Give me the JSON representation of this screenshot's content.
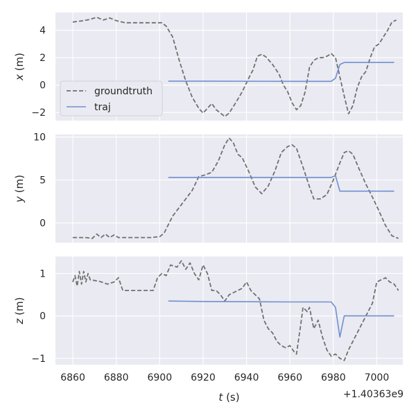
{
  "chart_data": {
    "type": "line",
    "x_offset_label": "+1.40363e9",
    "xlabel": "t (s)",
    "xlabel_var": "t",
    "xlabel_unit": " (s)",
    "xlim": [
      6852,
      7012
    ],
    "xticks": [
      6860,
      6880,
      6900,
      6920,
      6940,
      6960,
      6980,
      7000
    ],
    "legend": {
      "location": "lower-left of top panel",
      "entries": [
        "groundtruth",
        "traj"
      ]
    },
    "colors": {
      "groundtruth": "#707070",
      "traj": "#6f8fcf",
      "background": "#eaeaf2",
      "grid": "#ffffff"
    },
    "panels": [
      {
        "ylabel": "x (m)",
        "ylabel_var": "x",
        "ylabel_unit": " (m)",
        "ylim": [
          -2.6,
          5.3
        ],
        "yticks": [
          -2,
          0,
          2,
          4
        ],
        "series": [
          {
            "name": "groundtruth",
            "style": "dashed",
            "points": [
              [
                6860,
                4.6
              ],
              [
                6865,
                4.7
              ],
              [
                6868,
                4.8
              ],
              [
                6871,
                4.95
              ],
              [
                6874,
                4.75
              ],
              [
                6877,
                4.9
              ],
              [
                6880,
                4.7
              ],
              [
                6884,
                4.55
              ],
              [
                6890,
                4.55
              ],
              [
                6896,
                4.55
              ],
              [
                6901,
                4.55
              ],
              [
                6903,
                4.3
              ],
              [
                6906,
                3.5
              ],
              [
                6909,
                1.8
              ],
              [
                6912,
                0.3
              ],
              [
                6915,
                -0.9
              ],
              [
                6918,
                -1.7
              ],
              [
                6920,
                -2.05
              ],
              [
                6922,
                -1.7
              ],
              [
                6924,
                -1.35
              ],
              [
                6926,
                -1.8
              ],
              [
                6928,
                -2.05
              ],
              [
                6930,
                -2.3
              ],
              [
                6932,
                -2.05
              ],
              [
                6935,
                -1.3
              ],
              [
                6938,
                -0.5
              ],
              [
                6941,
                0.5
              ],
              [
                6943,
                1.1
              ],
              [
                6945,
                2.1
              ],
              [
                6947,
                2.25
              ],
              [
                6949,
                2.05
              ],
              [
                6952,
                1.5
              ],
              [
                6955,
                0.8
              ],
              [
                6957,
                0.0
              ],
              [
                6959,
                -0.5
              ],
              [
                6961,
                -1.3
              ],
              [
                6963,
                -1.8
              ],
              [
                6965,
                -1.5
              ],
              [
                6967,
                -0.5
              ],
              [
                6969,
                1.3
              ],
              [
                6971,
                1.8
              ],
              [
                6973,
                2.0
              ],
              [
                6975,
                2.0
              ],
              [
                6977,
                2.1
              ],
              [
                6979,
                2.3
              ],
              [
                6981,
                2.0
              ],
              [
                6983,
                0.6
              ],
              [
                6985,
                -0.8
              ],
              [
                6987,
                -2.1
              ],
              [
                6989,
                -1.5
              ],
              [
                6991,
                -0.2
              ],
              [
                6993,
                0.6
              ],
              [
                6995,
                1.0
              ],
              [
                6997,
                2.0
              ],
              [
                6999,
                2.8
              ],
              [
                7001,
                3.0
              ],
              [
                7003,
                3.5
              ],
              [
                7005,
                4.0
              ],
              [
                7007,
                4.6
              ],
              [
                7009,
                4.75
              ]
            ]
          },
          {
            "name": "traj",
            "style": "solid",
            "points": [
              [
                6904,
                0.28
              ],
              [
                6920,
                0.28
              ],
              [
                6960,
                0.27
              ],
              [
                6979,
                0.27
              ],
              [
                6981,
                0.5
              ],
              [
                6983,
                1.5
              ],
              [
                6985,
                1.65
              ],
              [
                7008,
                1.65
              ]
            ]
          }
        ]
      },
      {
        "ylabel": "y (m)",
        "ylabel_var": "y",
        "ylabel_unit": " (m)",
        "ylim": [
          -2.3,
          10.3
        ],
        "yticks": [
          0,
          5,
          10
        ],
        "series": [
          {
            "name": "groundtruth",
            "style": "dashed",
            "points": [
              [
                6860,
                -1.7
              ],
              [
                6866,
                -1.7
              ],
              [
                6869,
                -1.8
              ],
              [
                6871,
                -1.3
              ],
              [
                6873,
                -1.7
              ],
              [
                6875,
                -1.3
              ],
              [
                6877,
                -1.7
              ],
              [
                6879,
                -1.4
              ],
              [
                6881,
                -1.7
              ],
              [
                6885,
                -1.7
              ],
              [
                6890,
                -1.7
              ],
              [
                6896,
                -1.7
              ],
              [
                6900,
                -1.6
              ],
              [
                6902,
                -1.2
              ],
              [
                6904,
                -0.2
              ],
              [
                6906,
                0.8
              ],
              [
                6909,
                1.8
              ],
              [
                6912,
                2.8
              ],
              [
                6915,
                3.8
              ],
              [
                6918,
                5.4
              ],
              [
                6921,
                5.6
              ],
              [
                6924,
                5.9
              ],
              [
                6927,
                7.2
              ],
              [
                6930,
                9.1
              ],
              [
                6932,
                9.9
              ],
              [
                6934,
                9.3
              ],
              [
                6936,
                8.0
              ],
              [
                6938,
                7.6
              ],
              [
                6941,
                6.0
              ],
              [
                6944,
                4.2
              ],
              [
                6947,
                3.4
              ],
              [
                6950,
                4.3
              ],
              [
                6953,
                6.0
              ],
              [
                6956,
                8.2
              ],
              [
                6959,
                8.9
              ],
              [
                6961,
                9.1
              ],
              [
                6963,
                8.7
              ],
              [
                6966,
                6.5
              ],
              [
                6969,
                4.2
              ],
              [
                6971,
                2.8
              ],
              [
                6974,
                2.8
              ],
              [
                6977,
                3.3
              ],
              [
                6980,
                5.0
              ],
              [
                6983,
                7.0
              ],
              [
                6985,
                8.2
              ],
              [
                6987,
                8.4
              ],
              [
                6989,
                8.0
              ],
              [
                6992,
                6.2
              ],
              [
                6995,
                4.5
              ],
              [
                6998,
                3.0
              ],
              [
                7001,
                1.4
              ],
              [
                7004,
                -0.3
              ],
              [
                7007,
                -1.5
              ],
              [
                7010,
                -1.8
              ]
            ]
          },
          {
            "name": "traj",
            "style": "solid",
            "points": [
              [
                6904,
                5.3
              ],
              [
                6960,
                5.3
              ],
              [
                6979,
                5.3
              ],
              [
                6981,
                5.5
              ],
              [
                6983,
                3.7
              ],
              [
                7008,
                3.7
              ]
            ]
          }
        ]
      },
      {
        "ylabel": "z (m)",
        "ylabel_var": "z",
        "ylabel_unit": " (m)",
        "ylim": [
          -1.15,
          1.4
        ],
        "yticks": [
          -1,
          0,
          1
        ],
        "series": [
          {
            "name": "groundtruth",
            "style": "dashed",
            "points": [
              [
                6860,
                0.8
              ],
              [
                6861,
                0.95
              ],
              [
                6862,
                0.7
              ],
              [
                6863,
                1.05
              ],
              [
                6864,
                0.75
              ],
              [
                6865,
                1.05
              ],
              [
                6866,
                0.8
              ],
              [
                6867,
                1.0
              ],
              [
                6868,
                0.85
              ],
              [
                6872,
                0.82
              ],
              [
                6876,
                0.75
              ],
              [
                6879,
                0.8
              ],
              [
                6881,
                0.9
              ],
              [
                6883,
                0.6
              ],
              [
                6890,
                0.6
              ],
              [
                6897,
                0.6
              ],
              [
                6899,
                0.9
              ],
              [
                6901,
                1.0
              ],
              [
                6903,
                0.95
              ],
              [
                6905,
                1.2
              ],
              [
                6908,
                1.15
              ],
              [
                6910,
                1.3
              ],
              [
                6912,
                1.1
              ],
              [
                6914,
                1.25
              ],
              [
                6916,
                1.0
              ],
              [
                6918,
                0.85
              ],
              [
                6920,
                1.2
              ],
              [
                6922,
                1.0
              ],
              [
                6924,
                0.6
              ],
              [
                6926,
                0.6
              ],
              [
                6928,
                0.5
              ],
              [
                6930,
                0.35
              ],
              [
                6932,
                0.5
              ],
              [
                6934,
                0.55
              ],
              [
                6936,
                0.6
              ],
              [
                6938,
                0.65
              ],
              [
                6940,
                0.8
              ],
              [
                6942,
                0.6
              ],
              [
                6944,
                0.5
              ],
              [
                6946,
                0.4
              ],
              [
                6948,
                -0.1
              ],
              [
                6950,
                -0.3
              ],
              [
                6952,
                -0.4
              ],
              [
                6954,
                -0.6
              ],
              [
                6956,
                -0.7
              ],
              [
                6958,
                -0.75
              ],
              [
                6960,
                -0.7
              ],
              [
                6962,
                -0.85
              ],
              [
                6963,
                -0.9
              ],
              [
                6965,
                -0.2
              ],
              [
                6966,
                0.2
              ],
              [
                6968,
                0.1
              ],
              [
                6969,
                0.2
              ],
              [
                6971,
                -0.3
              ],
              [
                6973,
                -0.1
              ],
              [
                6975,
                -0.5
              ],
              [
                6977,
                -0.8
              ],
              [
                6979,
                -0.95
              ],
              [
                6981,
                -0.9
              ],
              [
                6983,
                -1.0
              ],
              [
                6985,
                -1.05
              ],
              [
                6987,
                -0.8
              ],
              [
                6990,
                -0.5
              ],
              [
                6993,
                -0.2
              ],
              [
                6996,
                0.1
              ],
              [
                6998,
                0.3
              ],
              [
                7000,
                0.8
              ],
              [
                7002,
                0.85
              ],
              [
                7004,
                0.9
              ],
              [
                7006,
                0.8
              ],
              [
                7008,
                0.75
              ],
              [
                7010,
                0.6
              ]
            ]
          },
          {
            "name": "traj",
            "style": "solid",
            "points": [
              [
                6904,
                0.35
              ],
              [
                6920,
                0.34
              ],
              [
                6960,
                0.33
              ],
              [
                6979,
                0.33
              ],
              [
                6981,
                0.2
              ],
              [
                6983,
                -0.5
              ],
              [
                6985,
                0.0
              ],
              [
                7008,
                0.0
              ]
            ]
          }
        ]
      }
    ]
  }
}
